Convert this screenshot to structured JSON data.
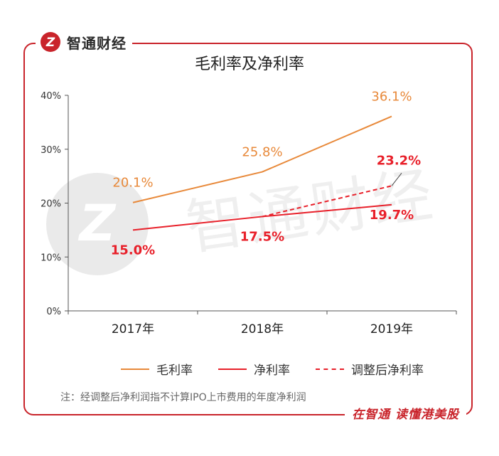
{
  "brand": {
    "name": "智通财经"
  },
  "watermark": {
    "text": "智通财经"
  },
  "chart_data": {
    "type": "line",
    "title": "毛利率及净利率",
    "categories": [
      "2017年",
      "2018年",
      "2019年"
    ],
    "yticks": [
      "0%",
      "10%",
      "20%",
      "30%",
      "40%"
    ],
    "ylim": [
      0,
      40
    ],
    "grid": false,
    "legend_position": "bottom",
    "series": [
      {
        "name": "毛利率",
        "values": [
          20.1,
          25.8,
          36.1
        ],
        "labels": [
          "20.1%",
          "25.8%",
          "36.1%"
        ],
        "color": "#e8893a",
        "style": "solid"
      },
      {
        "name": "净利率",
        "values": [
          15.0,
          17.5,
          19.7
        ],
        "labels": [
          "15.0%",
          "17.5%",
          "19.7%"
        ],
        "color": "#e8202a",
        "style": "solid"
      },
      {
        "name": "调整后净利率",
        "values": [
          null,
          17.5,
          23.2
        ],
        "labels": [
          "",
          "",
          "23.2%"
        ],
        "color": "#e8202a",
        "style": "dashed"
      }
    ]
  },
  "note": "注：经调整后净利润指不计算IPO上市费用的年度净利润",
  "footer": "在智通  读懂港美股"
}
